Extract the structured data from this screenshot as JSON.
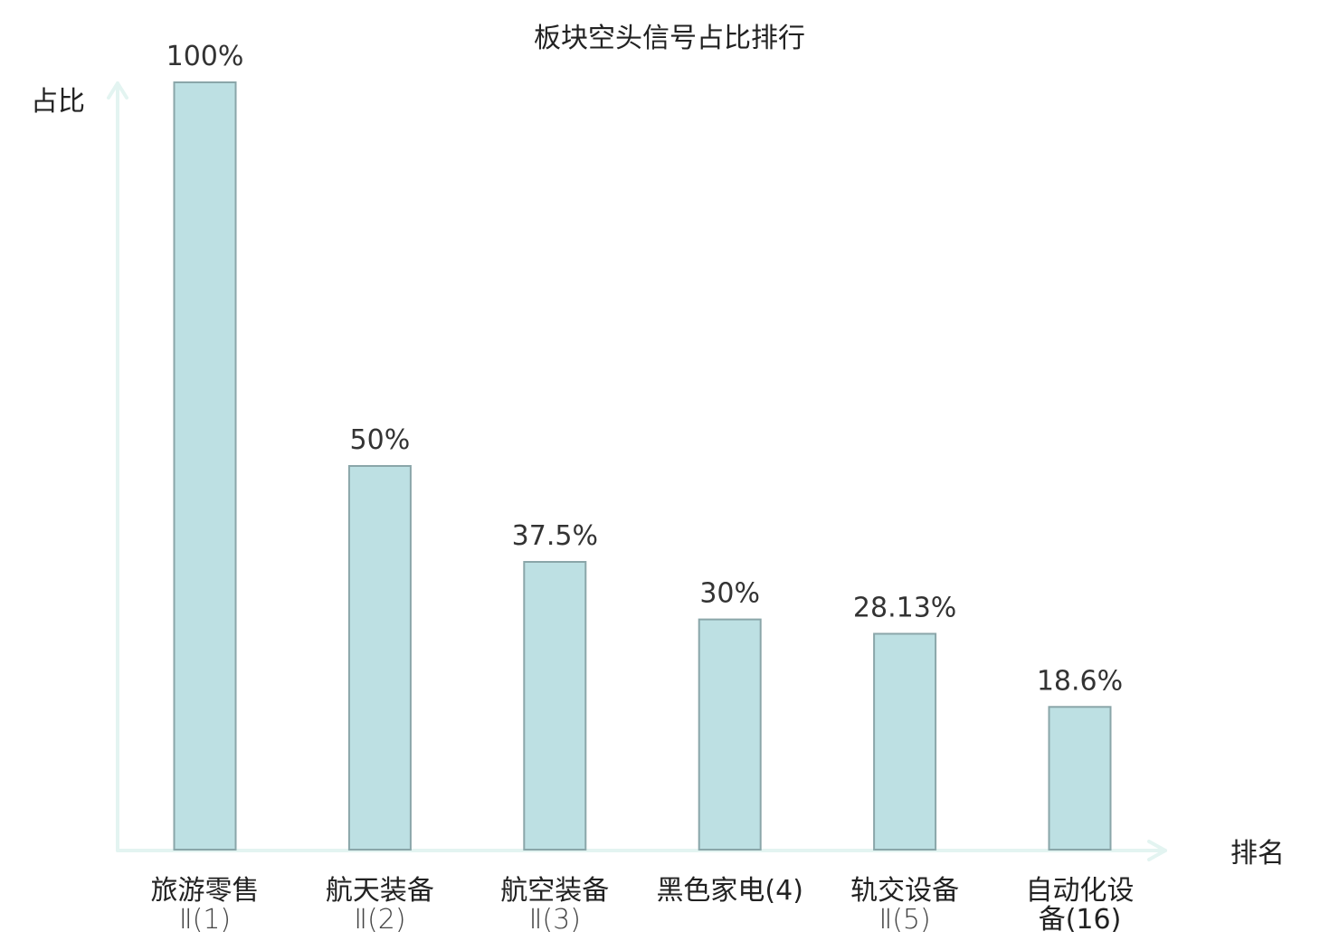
{
  "chart_data": {
    "type": "bar",
    "title": "板块空头信号占比排行",
    "ylabel": "占比",
    "xlabel": "排名",
    "ylim": [
      0,
      100
    ],
    "grid": false,
    "categories": [
      {
        "lines": [
          "旅游零售",
          "Ⅱ(1)"
        ],
        "highlight": false
      },
      {
        "lines": [
          "航天装备",
          "Ⅱ(2)"
        ],
        "highlight": false
      },
      {
        "lines": [
          "航空装备",
          "Ⅱ(3)"
        ],
        "highlight": false
      },
      {
        "lines": [
          "黑色家电(4)"
        ],
        "highlight": false
      },
      {
        "lines": [
          "轨交设备",
          "Ⅱ(5)"
        ],
        "highlight": false
      },
      {
        "lines": [
          "自动化设",
          "备(16)"
        ],
        "highlight": true
      }
    ],
    "values": [
      100,
      50,
      37.5,
      30,
      28.13,
      18.6
    ],
    "value_labels": [
      "100%",
      "50%",
      "37.5%",
      "30%",
      "28.13%",
      "18.6%"
    ]
  },
  "colors": {
    "bar_fill": "#bde0e3",
    "bar_stroke": "#8aa6a9",
    "axis": "#e3f4f1",
    "highlight_text": "#e8141c",
    "text": "#222222"
  }
}
